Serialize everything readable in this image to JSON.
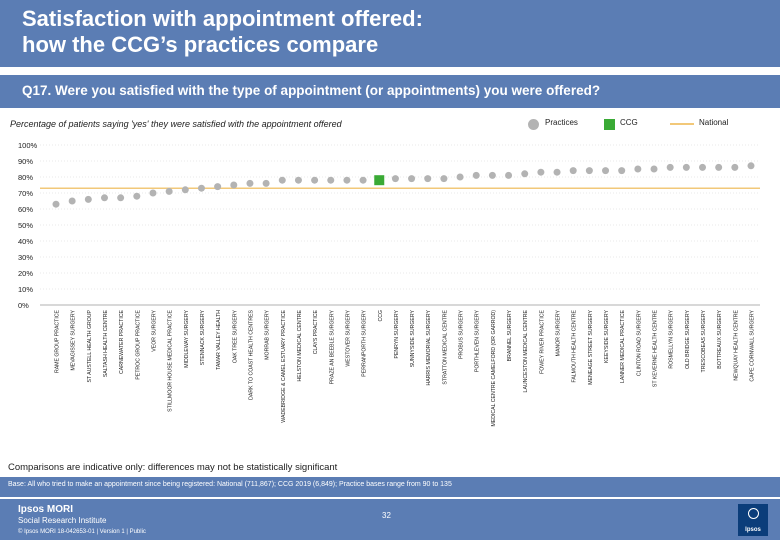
{
  "title": "Satisfaction with appointment offered:\nhow the CCG’s practices compare",
  "question": "Q17. Were you satisfied with the type of appointment (or appointments) you were offered?",
  "subtitle": "Percentage of patients saying 'yes' they were satisfied with the appointment offered",
  "legend": {
    "practices": "Practices",
    "ccg": "CCG",
    "national": "National"
  },
  "colors": {
    "header": "#5b7db4",
    "practice_marker": "#b3b3b3",
    "ccg_marker": "#3aaa35",
    "national_line": "#f2c879"
  },
  "note": "Comparisons are indicative only: differences may not be statistically significant",
  "base": "Base: All who tried to make an appointment since being registered: National (711,867); CCG 2019 (6,849); Practice bases range from 90 to 135",
  "footer": {
    "brand_line1": "Ipsos MORI",
    "brand_line2": "Social Research Institute",
    "page": "32",
    "copyright": "© Ipsos MORI     18-042653-01 | Version 1 | Public",
    "logo": "Ipsos"
  },
  "chart_data": {
    "type": "scatter",
    "ylim": [
      0,
      100
    ],
    "yticks": [
      "0%",
      "10%",
      "20%",
      "30%",
      "40%",
      "50%",
      "60%",
      "70%",
      "80%",
      "90%",
      "100%"
    ],
    "national": 73,
    "categories": [
      "RAME GROUP PRACTICE",
      "MEVAGISSEY SURGERY",
      "ST AUSTELL HEALTH GROUP",
      "SALTASH HEALTH CENTRE",
      "CARNEWATER PRACTICE",
      "PETROC GROUP PRACTICE",
      "VEOR SURGERY",
      "STILLMOOR HOUSE MEDICAL PRACTICE",
      "MIDDLEWAY SURGERY",
      "STENNACK SURGERY",
      "TAMAR VALLEY HEALTH",
      "OAK TREE SURGERY",
      "DARK TO COAST HEALTH CENTRES",
      "MORRAB SURGERY",
      "WADEBRIDGE & CAMEL ESTUARY PRACTICE",
      "HELSTON MEDICAL CENTRE",
      "CLAYS PRACTICE",
      "PRAZE AN BEEBLE SURGERY",
      "WESTOVER SURGERY",
      "PERRANPORTH SURGERY",
      "CCG",
      "PENRYN SURGERY",
      "SUNNYSIDE SURGERY",
      "HARRIS MEMORIAL SURGERY",
      "STRATTON MEDICAL CENTRE",
      "PROBUS SURGERY",
      "PORTHLEVEN SURGERY",
      "MEDICAL CENTRE CAMELFORD (OR GARROD)",
      "BRANNEL SURGERY",
      "LAUNCESTON MEDICAL CENTRE",
      "FOWEY RIVER PRACTICE",
      "MANOR SURGERY",
      "FALMOUTH HEALTH CENTRE",
      "MENEAGE STREET SURGERY",
      "KEEYSIDE SURGERY",
      "LANNER MEDICAL PRACTICE",
      "CLINTON ROAD SURGERY",
      "ST KEVERNE HEALTH CENTRE",
      "ROSMELLYN SURGERY",
      "OLD BRIDGE SURGERY",
      "TRESCOBEAS SURGERY",
      "BOTTREAUX SURGERY",
      "NEWQUAY HEALTH CENTRE",
      "CAPE CORNWALL SURGERY"
    ],
    "values": [
      63,
      65,
      66,
      67,
      67,
      68,
      70,
      71,
      72,
      73,
      74,
      75,
      76,
      76,
      78,
      78,
      78,
      78,
      78,
      78,
      78,
      79,
      79,
      79,
      79,
      80,
      81,
      81,
      81,
      82,
      83,
      83,
      84,
      84,
      84,
      84,
      85,
      85,
      86,
      86,
      86,
      86,
      86,
      87
    ],
    "ccg_index": 20
  }
}
